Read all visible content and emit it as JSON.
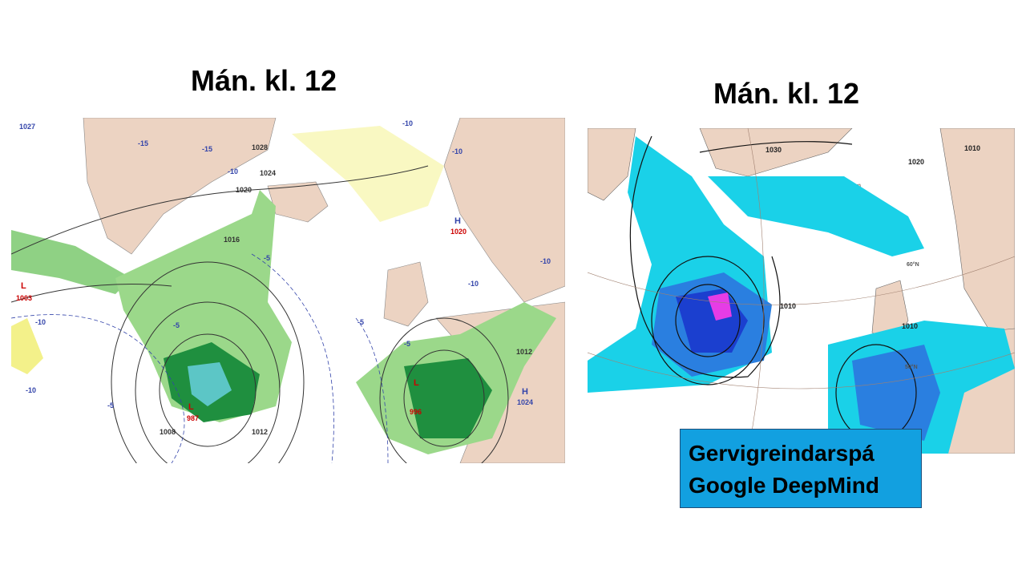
{
  "slide": {
    "left_panel": {
      "title": "Mán. kl. 12",
      "map_labels": [
        "1027",
        "-10",
        "-15",
        "-15",
        "-10",
        "1028",
        "1024",
        "1020",
        "1016",
        "H",
        "1020",
        "-10",
        "-10",
        "-5",
        "L",
        "1003",
        "-10",
        "-5",
        "-5",
        "-10",
        "L",
        "987",
        "1008",
        "1012",
        "L",
        "996",
        "H",
        "1024",
        "1012",
        "-10",
        "-5",
        "-5"
      ]
    },
    "right_panel": {
      "title": "Mán. kl. 12",
      "map_labels": [
        "1030",
        "1010",
        "1010",
        "1010",
        "1020",
        "60°N",
        "50°N"
      ],
      "caption": [
        "Gervigreindarspá",
        "Google DeepMind"
      ]
    }
  }
}
